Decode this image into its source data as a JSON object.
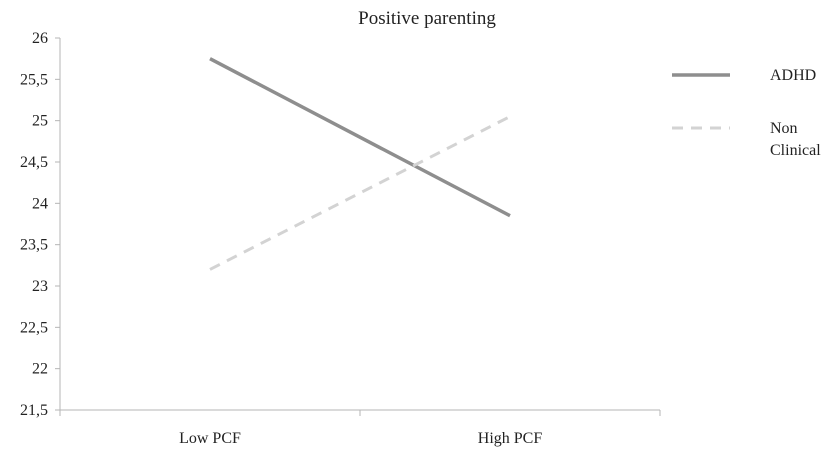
{
  "chart_data": {
    "type": "line",
    "title": "Positive parenting",
    "categories": [
      "Low PCF",
      "High PCF"
    ],
    "series": [
      {
        "name": "ADHD",
        "values": [
          25.75,
          23.85
        ],
        "color": "#8e8e8e",
        "style": "solid"
      },
      {
        "name": "Non Clinical",
        "name_lines": [
          "Non",
          "Clinical"
        ],
        "values": [
          23.2,
          25.05
        ],
        "color": "#d3d3d3",
        "style": "dashed"
      }
    ],
    "ylim": [
      21.5,
      26
    ],
    "yticks": [
      21.5,
      22,
      22.5,
      23,
      23.5,
      24,
      24.5,
      25,
      25.5,
      26
    ],
    "ytick_labels": [
      "21,5",
      "22",
      "22,5",
      "23",
      "23,5",
      "24",
      "24,5",
      "25",
      "25,5",
      "26"
    ],
    "xlabel": "",
    "ylabel": "",
    "grid": false,
    "legend_position": "right"
  }
}
